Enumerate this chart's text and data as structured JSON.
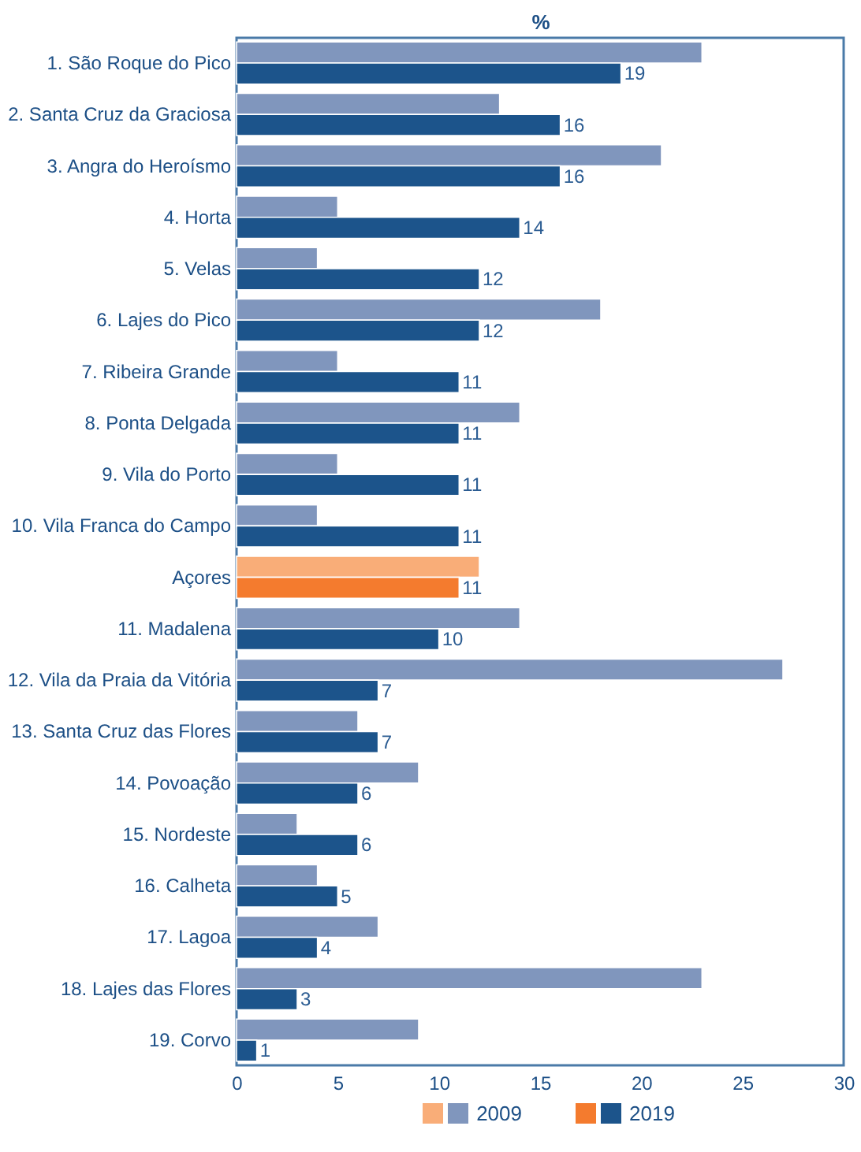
{
  "chart_data": {
    "type": "bar",
    "orientation": "horizontal",
    "xlabel": "%",
    "categories": [
      "1. São Roque do Pico",
      "2. Santa Cruz da Graciosa",
      "3. Angra do Heroísmo",
      "4. Horta",
      "5. Velas",
      "6. Lajes do Pico",
      "7. Ribeira Grande",
      "8. Ponta Delgada",
      "9. Vila do Porto",
      "10. Vila Franca do Campo",
      "Açores",
      "11. Madalena",
      "12. Vila da Praia da Vitória",
      "13. Santa Cruz das Flores",
      "14. Povoação",
      "15. Nordeste",
      "16. Calheta",
      "17. Lagoa",
      "18. Lajes das Flores",
      "19. Corvo"
    ],
    "series": [
      {
        "name": "2009",
        "colors": [
          "#8096bd",
          "#8096bd",
          "#8096bd",
          "#8096bd",
          "#8096bd",
          "#8096bd",
          "#8096bd",
          "#8096bd",
          "#8096bd",
          "#8096bd",
          "#f9ad78",
          "#8096bd",
          "#8096bd",
          "#8096bd",
          "#8096bd",
          "#8096bd",
          "#8096bd",
          "#8096bd",
          "#8096bd",
          "#8096bd"
        ],
        "values": [
          23,
          13,
          21,
          5,
          4,
          18,
          5,
          14,
          5,
          4,
          12,
          14,
          27,
          6,
          9,
          3,
          4,
          7,
          23,
          9
        ]
      },
      {
        "name": "2019",
        "colors": [
          "#1c548b",
          "#1c548b",
          "#1c548b",
          "#1c548b",
          "#1c548b",
          "#1c548b",
          "#1c548b",
          "#1c548b",
          "#1c548b",
          "#1c548b",
          "#f47b2e",
          "#1c548b",
          "#1c548b",
          "#1c548b",
          "#1c548b",
          "#1c548b",
          "#1c548b",
          "#1c548b",
          "#1c548b",
          "#1c548b"
        ],
        "values": [
          19,
          16,
          16,
          14,
          12,
          12,
          11,
          11,
          11,
          11,
          11,
          10,
          7,
          7,
          6,
          6,
          5,
          4,
          3,
          1
        ],
        "value_labels": [
          "19",
          "16",
          "16",
          "14",
          "12",
          "12",
          "11",
          "11",
          "11",
          "11",
          "11",
          "10",
          "7",
          "7",
          "6",
          "6",
          "5",
          "4",
          "3",
          "1"
        ]
      }
    ],
    "xlim": [
      0,
      30
    ],
    "xticks": [
      0,
      5,
      10,
      15,
      20,
      25,
      30
    ],
    "legend": "bottom"
  }
}
